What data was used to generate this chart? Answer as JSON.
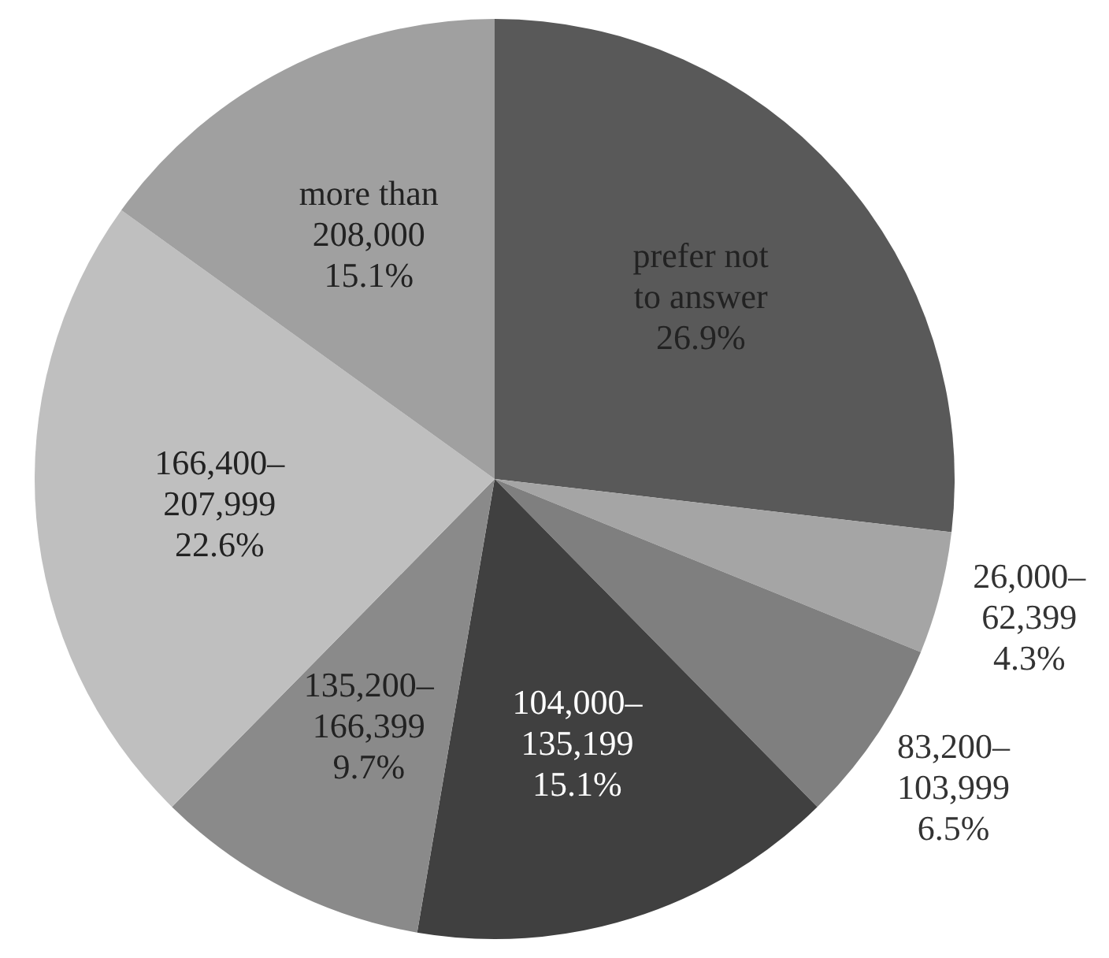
{
  "chart_data": {
    "type": "pie",
    "categories": [
      "prefer not to answer",
      "26,000–62,399",
      "83,200–103,999",
      "104,000–135,199",
      "135,200–166,399",
      "166,400–207,999",
      "more than 208,000"
    ],
    "values": [
      26.9,
      4.3,
      6.5,
      15.1,
      9.7,
      22.6,
      15.1
    ],
    "colors": [
      "#595959",
      "#a5a5a5",
      "#7f7f7f",
      "#404040",
      "#8a8a8a",
      "#bfbfbf",
      "#a0a0a0"
    ],
    "value_labels": [
      "26.9%",
      "4.3%",
      "6.5%",
      "15.1%",
      "9.7%",
      "22.6%",
      "15.1%"
    ],
    "legend": false
  }
}
